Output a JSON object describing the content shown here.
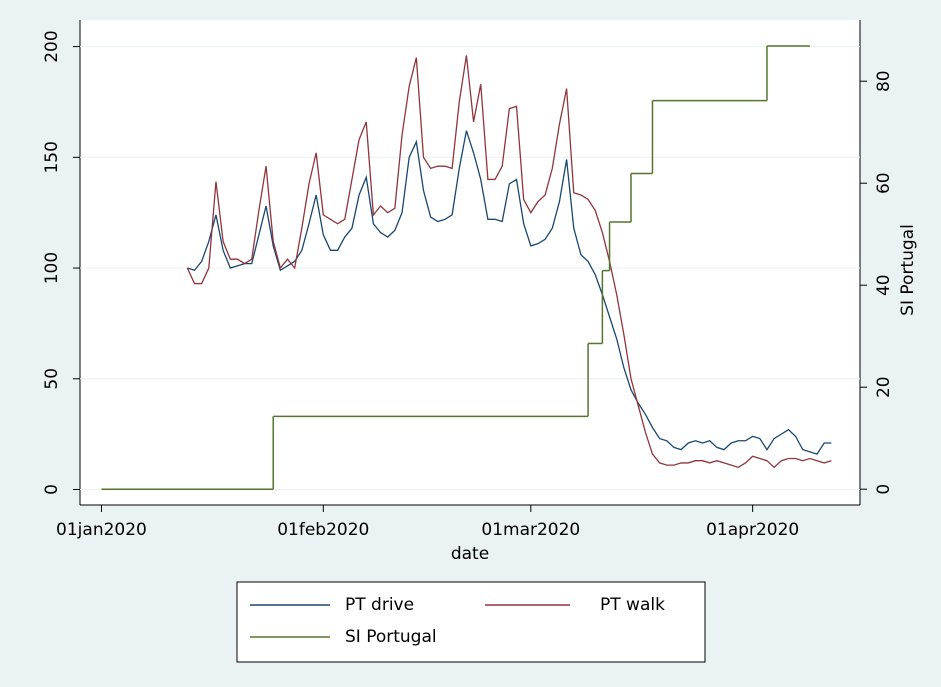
{
  "chart_data": {
    "type": "line",
    "x_label": "date",
    "y2_label": "SI Portugal",
    "xlim": [
      "2019-12-29",
      "2020-04-16"
    ],
    "xticks": [
      {
        "value": "2020-01-01",
        "label": "01jan2020"
      },
      {
        "value": "2020-02-01",
        "label": "01feb2020"
      },
      {
        "value": "2020-03-01",
        "label": "01mar2020"
      },
      {
        "value": "2020-04-01",
        "label": "01apr2020"
      }
    ],
    "ylim": [
      -7,
      212
    ],
    "yticks": [
      0,
      50,
      100,
      150,
      200
    ],
    "y2lim": [
      -3.1,
      92
    ],
    "y2ticks": [
      0,
      20,
      40,
      60,
      80
    ],
    "grid": true,
    "series": [
      {
        "name": "PT drive",
        "color": "#1a476f",
        "x": [
          "2020-01-13",
          "2020-01-14",
          "2020-01-15",
          "2020-01-16",
          "2020-01-17",
          "2020-01-18",
          "2020-01-19",
          "2020-01-20",
          "2020-01-21",
          "2020-01-22",
          "2020-01-23",
          "2020-01-24",
          "2020-01-25",
          "2020-01-26",
          "2020-01-27",
          "2020-01-28",
          "2020-01-29",
          "2020-01-30",
          "2020-01-31",
          "2020-02-01",
          "2020-02-02",
          "2020-02-03",
          "2020-02-04",
          "2020-02-05",
          "2020-02-06",
          "2020-02-07",
          "2020-02-08",
          "2020-02-09",
          "2020-02-10",
          "2020-02-11",
          "2020-02-12",
          "2020-02-13",
          "2020-02-14",
          "2020-02-15",
          "2020-02-16",
          "2020-02-17",
          "2020-02-18",
          "2020-02-19",
          "2020-02-20",
          "2020-02-21",
          "2020-02-22",
          "2020-02-23",
          "2020-02-24",
          "2020-02-25",
          "2020-02-26",
          "2020-02-27",
          "2020-02-28",
          "2020-02-29",
          "2020-03-01",
          "2020-03-02",
          "2020-03-03",
          "2020-03-04",
          "2020-03-05",
          "2020-03-06",
          "2020-03-07",
          "2020-03-08",
          "2020-03-09",
          "2020-03-10",
          "2020-03-11",
          "2020-03-12",
          "2020-03-13",
          "2020-03-14",
          "2020-03-15",
          "2020-03-16",
          "2020-03-17",
          "2020-03-18",
          "2020-03-19",
          "2020-03-20",
          "2020-03-21",
          "2020-03-22",
          "2020-03-23",
          "2020-03-24",
          "2020-03-25",
          "2020-03-26",
          "2020-03-27",
          "2020-03-28",
          "2020-03-29",
          "2020-03-30",
          "2020-03-31",
          "2020-04-01",
          "2020-04-02",
          "2020-04-03",
          "2020-04-04",
          "2020-04-05",
          "2020-04-06",
          "2020-04-07",
          "2020-04-08",
          "2020-04-09",
          "2020-04-10",
          "2020-04-11",
          "2020-04-12"
        ],
        "values": [
          100,
          99,
          103,
          112,
          124,
          108,
          100,
          101,
          102,
          102,
          115,
          128,
          110,
          99,
          101,
          103,
          108,
          120,
          133,
          115,
          108,
          108,
          114,
          118,
          133,
          141,
          120,
          116,
          114,
          117,
          125,
          150,
          157,
          135,
          123,
          121,
          122,
          124,
          145,
          162,
          152,
          140,
          122,
          122,
          121,
          138,
          140,
          120,
          110,
          111,
          113,
          118,
          130,
          149,
          118,
          106,
          103,
          97,
          88,
          78,
          68,
          55,
          45,
          39,
          34,
          28,
          23,
          22,
          19,
          18,
          21,
          22,
          21,
          22,
          19,
          18,
          21,
          22,
          22,
          24,
          23,
          18,
          23,
          25,
          27,
          24,
          18,
          17,
          16,
          21,
          21
        ]
      },
      {
        "name": "PT walk",
        "color": "#90353b",
        "x": [
          "2020-01-13",
          "2020-01-14",
          "2020-01-15",
          "2020-01-16",
          "2020-01-17",
          "2020-01-18",
          "2020-01-19",
          "2020-01-20",
          "2020-01-21",
          "2020-01-22",
          "2020-01-23",
          "2020-01-24",
          "2020-01-25",
          "2020-01-26",
          "2020-01-27",
          "2020-01-28",
          "2020-01-29",
          "2020-01-30",
          "2020-01-31",
          "2020-02-01",
          "2020-02-02",
          "2020-02-03",
          "2020-02-04",
          "2020-02-05",
          "2020-02-06",
          "2020-02-07",
          "2020-02-08",
          "2020-02-09",
          "2020-02-10",
          "2020-02-11",
          "2020-02-12",
          "2020-02-13",
          "2020-02-14",
          "2020-02-15",
          "2020-02-16",
          "2020-02-17",
          "2020-02-18",
          "2020-02-19",
          "2020-02-20",
          "2020-02-21",
          "2020-02-22",
          "2020-02-23",
          "2020-02-24",
          "2020-02-25",
          "2020-02-26",
          "2020-02-27",
          "2020-02-28",
          "2020-02-29",
          "2020-03-01",
          "2020-03-02",
          "2020-03-03",
          "2020-03-04",
          "2020-03-05",
          "2020-03-06",
          "2020-03-07",
          "2020-03-08",
          "2020-03-09",
          "2020-03-10",
          "2020-03-11",
          "2020-03-12",
          "2020-03-13",
          "2020-03-14",
          "2020-03-15",
          "2020-03-16",
          "2020-03-17",
          "2020-03-18",
          "2020-03-19",
          "2020-03-20",
          "2020-03-21",
          "2020-03-22",
          "2020-03-23",
          "2020-03-24",
          "2020-03-25",
          "2020-03-26",
          "2020-03-27",
          "2020-03-28",
          "2020-03-29",
          "2020-03-30",
          "2020-03-31",
          "2020-04-01",
          "2020-04-02",
          "2020-04-03",
          "2020-04-04",
          "2020-04-05",
          "2020-04-06",
          "2020-04-07",
          "2020-04-08",
          "2020-04-09",
          "2020-04-10",
          "2020-04-11",
          "2020-04-12"
        ],
        "values": [
          100,
          93,
          93,
          100,
          139,
          112,
          104,
          104,
          102,
          104,
          126,
          146,
          112,
          100,
          104,
          100,
          118,
          138,
          152,
          124,
          122,
          120,
          122,
          140,
          158,
          166,
          124,
          128,
          125,
          127,
          160,
          182,
          195,
          150,
          145,
          146,
          146,
          145,
          175,
          196,
          166,
          183,
          140,
          140,
          146,
          172,
          173,
          131,
          125,
          130,
          133,
          145,
          165,
          181,
          134,
          133,
          131,
          126,
          116,
          103,
          88,
          70,
          50,
          38,
          26,
          16,
          12,
          11,
          11,
          12,
          12,
          13,
          13,
          12,
          13,
          12,
          11,
          10,
          12,
          15,
          14,
          13,
          10,
          13,
          14,
          14,
          13,
          14,
          13,
          12,
          13
        ]
      },
      {
        "name": "SI Portugal",
        "color": "#55752f",
        "axis": "y2",
        "step": true,
        "x": [
          "2020-01-01",
          "2020-01-25",
          "2020-03-09",
          "2020-03-11",
          "2020-03-12",
          "2020-03-15",
          "2020-03-18",
          "2020-04-03",
          "2020-04-09"
        ],
        "values": [
          0,
          14.29,
          28.57,
          42.86,
          52.38,
          61.9,
          76.19,
          86.9,
          86.9
        ]
      }
    ]
  }
}
